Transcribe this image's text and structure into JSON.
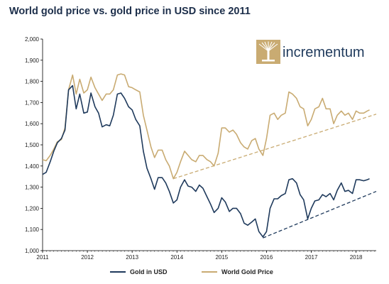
{
  "chart_data": {
    "type": "line",
    "title": "World gold price vs. gold price in USD since 2011",
    "xlabel": "",
    "ylabel": "",
    "xlim": [
      2011.0,
      2018.45
    ],
    "ylim": [
      1000,
      2000
    ],
    "y_ticks": [
      1000,
      1100,
      1200,
      1300,
      1400,
      1500,
      1600,
      1700,
      1800,
      1900,
      2000
    ],
    "y_tick_labels": [
      "1,000",
      "1,100",
      "1,200",
      "1,300",
      "1,400",
      "1,500",
      "1,600",
      "1,700",
      "1,800",
      "1,900",
      "2,000"
    ],
    "x_ticks": [
      2011,
      2012,
      2013,
      2014,
      2015,
      2016,
      2017,
      2018
    ],
    "x_tick_labels": [
      "2011",
      "2012",
      "2013",
      "2014",
      "2015",
      "2016",
      "2017",
      "2018"
    ],
    "grid": false,
    "legend_position": "bottom",
    "series": [
      {
        "name": "Gold in USD",
        "color": "#1f3a5c",
        "points": [
          [
            2011.0,
            1360
          ],
          [
            2011.08,
            1370
          ],
          [
            2011.17,
            1420
          ],
          [
            2011.25,
            1470
          ],
          [
            2011.33,
            1510
          ],
          [
            2011.42,
            1530
          ],
          [
            2011.5,
            1570
          ],
          [
            2011.58,
            1760
          ],
          [
            2011.67,
            1780
          ],
          [
            2011.75,
            1670
          ],
          [
            2011.83,
            1740
          ],
          [
            2011.92,
            1650
          ],
          [
            2012.0,
            1655
          ],
          [
            2012.08,
            1745
          ],
          [
            2012.17,
            1680
          ],
          [
            2012.25,
            1650
          ],
          [
            2012.33,
            1585
          ],
          [
            2012.42,
            1595
          ],
          [
            2012.5,
            1590
          ],
          [
            2012.58,
            1640
          ],
          [
            2012.67,
            1740
          ],
          [
            2012.75,
            1745
          ],
          [
            2012.83,
            1720
          ],
          [
            2012.92,
            1680
          ],
          [
            2013.0,
            1665
          ],
          [
            2013.08,
            1620
          ],
          [
            2013.17,
            1590
          ],
          [
            2013.25,
            1470
          ],
          [
            2013.33,
            1390
          ],
          [
            2013.42,
            1340
          ],
          [
            2013.5,
            1290
          ],
          [
            2013.58,
            1345
          ],
          [
            2013.67,
            1345
          ],
          [
            2013.75,
            1320
          ],
          [
            2013.83,
            1280
          ],
          [
            2013.92,
            1225
          ],
          [
            2014.0,
            1240
          ],
          [
            2014.08,
            1300
          ],
          [
            2014.17,
            1335
          ],
          [
            2014.25,
            1305
          ],
          [
            2014.33,
            1300
          ],
          [
            2014.42,
            1280
          ],
          [
            2014.5,
            1310
          ],
          [
            2014.58,
            1295
          ],
          [
            2014.67,
            1255
          ],
          [
            2014.75,
            1220
          ],
          [
            2014.83,
            1180
          ],
          [
            2014.92,
            1200
          ],
          [
            2015.0,
            1250
          ],
          [
            2015.08,
            1230
          ],
          [
            2015.17,
            1185
          ],
          [
            2015.25,
            1200
          ],
          [
            2015.33,
            1200
          ],
          [
            2015.42,
            1175
          ],
          [
            2015.5,
            1130
          ],
          [
            2015.58,
            1120
          ],
          [
            2015.67,
            1135
          ],
          [
            2015.75,
            1150
          ],
          [
            2015.83,
            1090
          ],
          [
            2015.92,
            1065
          ],
          [
            2016.0,
            1090
          ],
          [
            2016.08,
            1200
          ],
          [
            2016.17,
            1245
          ],
          [
            2016.25,
            1245
          ],
          [
            2016.33,
            1260
          ],
          [
            2016.42,
            1270
          ],
          [
            2016.5,
            1335
          ],
          [
            2016.58,
            1340
          ],
          [
            2016.67,
            1320
          ],
          [
            2016.75,
            1265
          ],
          [
            2016.83,
            1240
          ],
          [
            2016.92,
            1150
          ],
          [
            2017.0,
            1200
          ],
          [
            2017.08,
            1235
          ],
          [
            2017.17,
            1240
          ],
          [
            2017.25,
            1265
          ],
          [
            2017.33,
            1255
          ],
          [
            2017.42,
            1270
          ],
          [
            2017.5,
            1240
          ],
          [
            2017.58,
            1285
          ],
          [
            2017.67,
            1320
          ],
          [
            2017.75,
            1280
          ],
          [
            2017.83,
            1285
          ],
          [
            2017.92,
            1270
          ],
          [
            2018.0,
            1335
          ],
          [
            2018.08,
            1335
          ],
          [
            2018.17,
            1330
          ],
          [
            2018.25,
            1335
          ],
          [
            2018.3,
            1340
          ]
        ]
      },
      {
        "name": "World Gold Price",
        "color": "#c9ab72",
        "points": [
          [
            2011.0,
            1430
          ],
          [
            2011.08,
            1425
          ],
          [
            2011.17,
            1450
          ],
          [
            2011.25,
            1480
          ],
          [
            2011.33,
            1515
          ],
          [
            2011.42,
            1525
          ],
          [
            2011.5,
            1580
          ],
          [
            2011.58,
            1760
          ],
          [
            2011.67,
            1830
          ],
          [
            2011.75,
            1740
          ],
          [
            2011.83,
            1810
          ],
          [
            2011.92,
            1745
          ],
          [
            2012.0,
            1760
          ],
          [
            2012.08,
            1820
          ],
          [
            2012.17,
            1770
          ],
          [
            2012.25,
            1740
          ],
          [
            2012.33,
            1710
          ],
          [
            2012.42,
            1740
          ],
          [
            2012.5,
            1740
          ],
          [
            2012.58,
            1760
          ],
          [
            2012.67,
            1830
          ],
          [
            2012.75,
            1835
          ],
          [
            2012.83,
            1830
          ],
          [
            2012.92,
            1775
          ],
          [
            2013.0,
            1770
          ],
          [
            2013.08,
            1760
          ],
          [
            2013.17,
            1750
          ],
          [
            2013.25,
            1640
          ],
          [
            2013.33,
            1570
          ],
          [
            2013.42,
            1490
          ],
          [
            2013.5,
            1440
          ],
          [
            2013.58,
            1475
          ],
          [
            2013.67,
            1475
          ],
          [
            2013.75,
            1430
          ],
          [
            2013.83,
            1400
          ],
          [
            2013.92,
            1340
          ],
          [
            2014.0,
            1370
          ],
          [
            2014.08,
            1420
          ],
          [
            2014.17,
            1470
          ],
          [
            2014.25,
            1450
          ],
          [
            2014.33,
            1430
          ],
          [
            2014.42,
            1420
          ],
          [
            2014.5,
            1450
          ],
          [
            2014.58,
            1450
          ],
          [
            2014.67,
            1430
          ],
          [
            2014.75,
            1420
          ],
          [
            2014.83,
            1400
          ],
          [
            2014.92,
            1460
          ],
          [
            2015.0,
            1580
          ],
          [
            2015.08,
            1580
          ],
          [
            2015.17,
            1560
          ],
          [
            2015.25,
            1570
          ],
          [
            2015.33,
            1550
          ],
          [
            2015.42,
            1510
          ],
          [
            2015.5,
            1490
          ],
          [
            2015.58,
            1480
          ],
          [
            2015.67,
            1520
          ],
          [
            2015.75,
            1530
          ],
          [
            2015.83,
            1480
          ],
          [
            2015.92,
            1450
          ],
          [
            2016.0,
            1530
          ],
          [
            2016.08,
            1640
          ],
          [
            2016.17,
            1650
          ],
          [
            2016.25,
            1620
          ],
          [
            2016.33,
            1640
          ],
          [
            2016.42,
            1650
          ],
          [
            2016.5,
            1750
          ],
          [
            2016.58,
            1740
          ],
          [
            2016.67,
            1720
          ],
          [
            2016.75,
            1680
          ],
          [
            2016.83,
            1670
          ],
          [
            2016.92,
            1590
          ],
          [
            2017.0,
            1620
          ],
          [
            2017.08,
            1670
          ],
          [
            2017.17,
            1680
          ],
          [
            2017.25,
            1720
          ],
          [
            2017.33,
            1670
          ],
          [
            2017.42,
            1670
          ],
          [
            2017.5,
            1600
          ],
          [
            2017.58,
            1640
          ],
          [
            2017.67,
            1660
          ],
          [
            2017.75,
            1640
          ],
          [
            2017.83,
            1650
          ],
          [
            2017.92,
            1620
          ],
          [
            2018.0,
            1660
          ],
          [
            2018.08,
            1650
          ],
          [
            2018.17,
            1650
          ],
          [
            2018.25,
            1660
          ],
          [
            2018.3,
            1665
          ]
        ]
      }
    ],
    "trendlines": [
      {
        "series": "Gold in USD",
        "color": "#1f3a5c",
        "dashed": true,
        "points": [
          [
            2015.92,
            1060
          ],
          [
            2018.45,
            1280
          ]
        ]
      },
      {
        "series": "World Gold Price",
        "color": "#c9ab72",
        "dashed": true,
        "points": [
          [
            2013.92,
            1340
          ],
          [
            2018.45,
            1645
          ]
        ]
      }
    ]
  },
  "logo": {
    "text": "incrementum",
    "tree_color": "#c9ab72",
    "text_color": "#1f3a5c",
    "icon": "tree-logo-icon"
  }
}
